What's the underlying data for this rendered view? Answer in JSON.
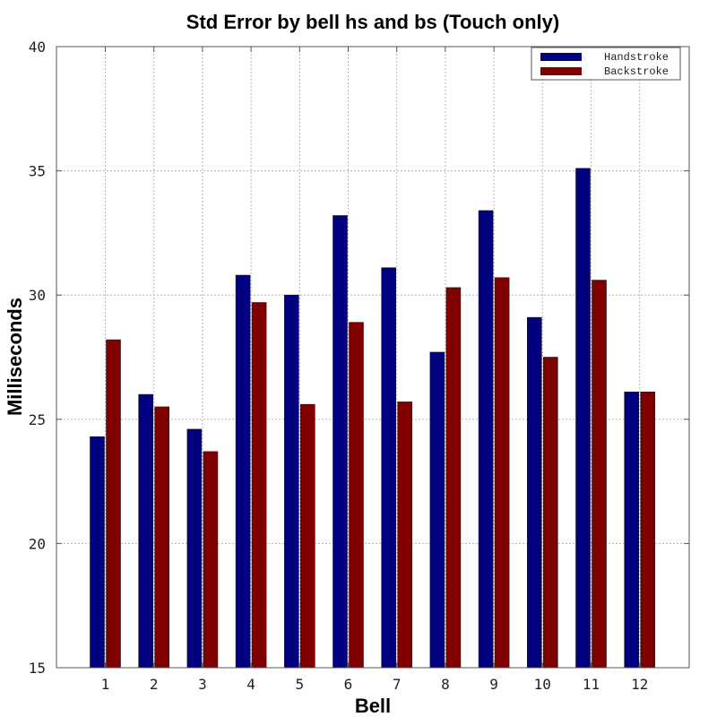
{
  "chart_data": {
    "type": "bar",
    "title": "Std Error by bell hs and bs (Touch only)",
    "xlabel": "Bell",
    "ylabel": "Milliseconds",
    "ylim": [
      15,
      40
    ],
    "yticks": [
      15,
      20,
      25,
      30,
      35,
      40
    ],
    "grid": true,
    "legend_position": "top-right",
    "categories": [
      "1",
      "2",
      "3",
      "4",
      "5",
      "6",
      "7",
      "8",
      "9",
      "10",
      "11",
      "12"
    ],
    "series": [
      {
        "name": "Handstroke",
        "color": "#000080",
        "values": [
          24.3,
          26.0,
          24.6,
          30.8,
          30.0,
          33.2,
          31.1,
          27.7,
          33.4,
          29.1,
          35.1,
          26.1
        ]
      },
      {
        "name": "Backstroke",
        "color": "#800000",
        "values": [
          28.2,
          25.5,
          23.7,
          29.7,
          25.6,
          28.9,
          25.7,
          30.3,
          30.7,
          27.5,
          30.6,
          26.1
        ]
      }
    ]
  }
}
